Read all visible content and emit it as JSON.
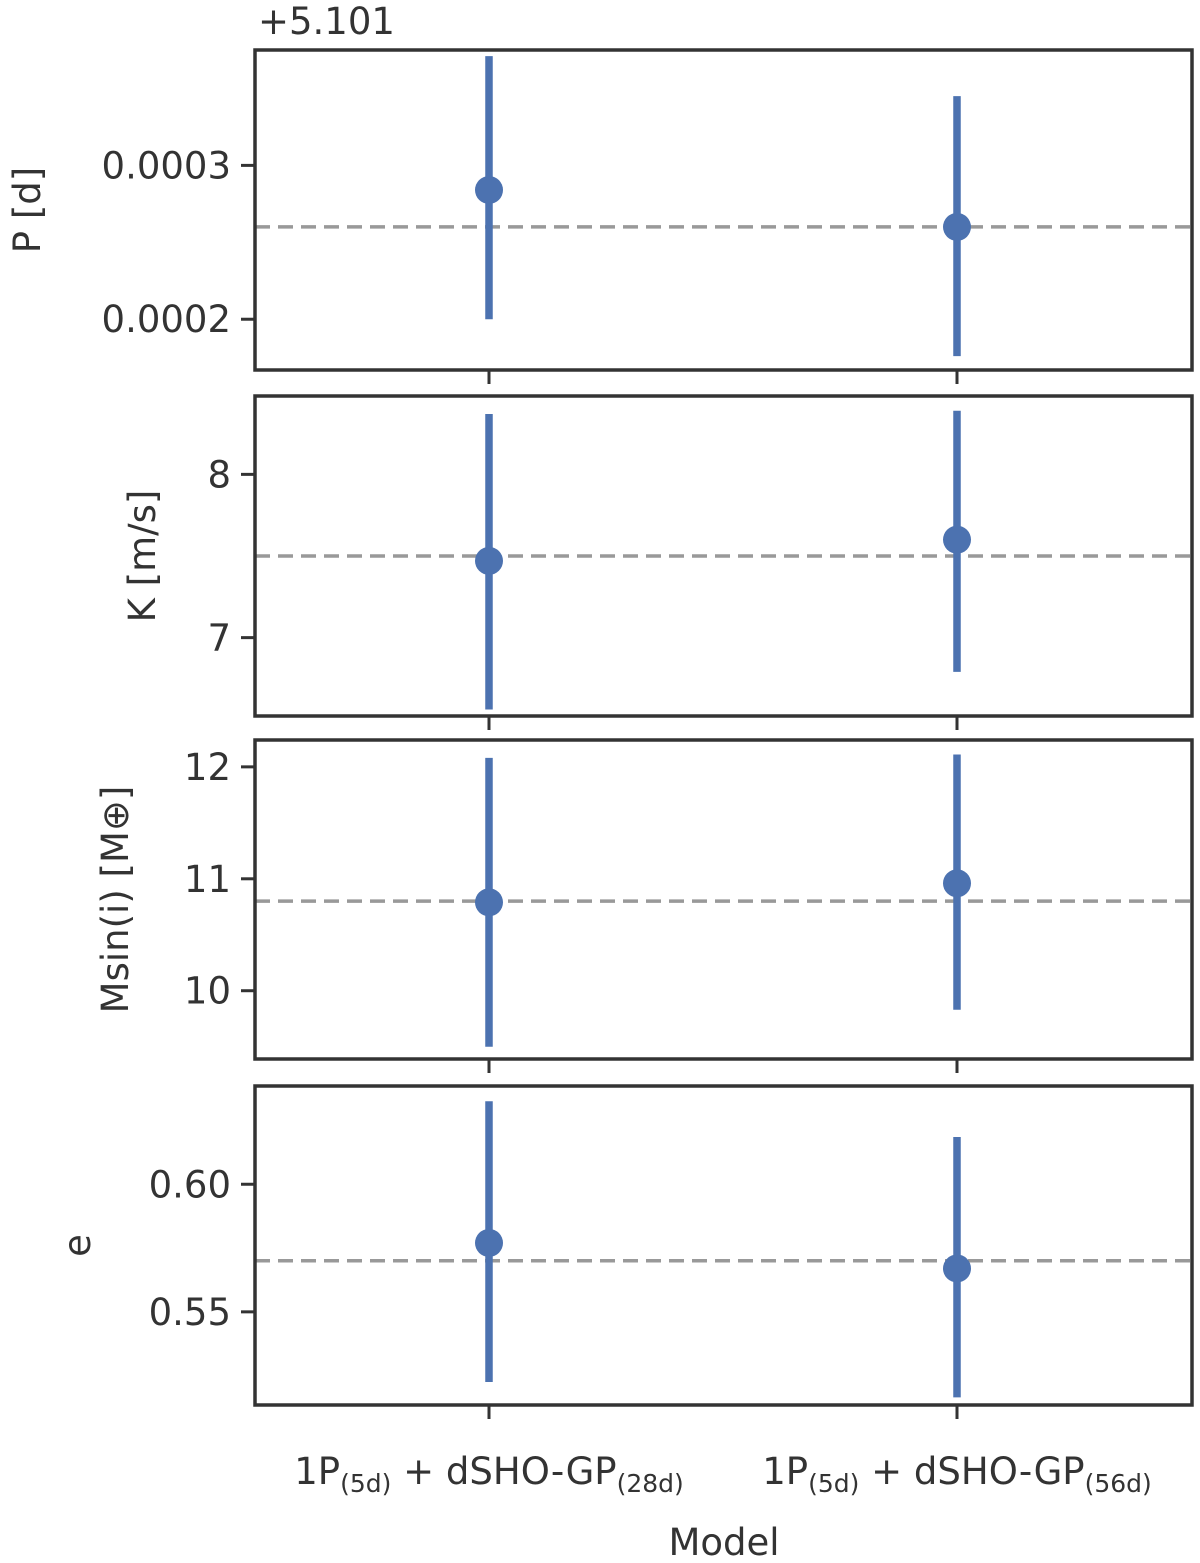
{
  "chart_data": {
    "type": "errorbar",
    "xlabel": "Model",
    "categories": [
      {
        "main": "1P",
        "sub1": "(5d)",
        "mid": " + dSHO-GP",
        "sub2": "(28d)"
      },
      {
        "main": "1P",
        "sub1": "(5d)",
        "mid": " + dSHO-GP",
        "sub2": "(56d)"
      }
    ],
    "panels": [
      {
        "ylabel": "P [d]",
        "offset_text": "+5.101",
        "ylim": [
          0.000167,
          0.000375
        ],
        "yticks": [
          0.0002,
          0.0003
        ],
        "ytick_labels": [
          "0.0002",
          "0.0003"
        ],
        "reference_line": 0.00026,
        "points": [
          {
            "y": 0.000284,
            "lower": 0.0002,
            "upper": 0.000371
          },
          {
            "y": 0.00026,
            "lower": 0.000176,
            "upper": 0.000345
          }
        ]
      },
      {
        "ylabel": "K [m/s]",
        "ylim": [
          6.52,
          8.48
        ],
        "yticks": [
          7,
          8
        ],
        "ytick_labels": [
          "7",
          "8"
        ],
        "reference_line": 7.5,
        "points": [
          {
            "y": 7.47,
            "lower": 6.56,
            "upper": 8.37
          },
          {
            "y": 7.6,
            "lower": 6.79,
            "upper": 8.39
          }
        ]
      },
      {
        "ylabel": "Msin(i) [M⊕]",
        "ylim": [
          9.39,
          12.24
        ],
        "yticks": [
          10,
          11,
          12
        ],
        "ytick_labels": [
          "10",
          "11",
          "12"
        ],
        "reference_line": 10.8,
        "points": [
          {
            "y": 10.79,
            "lower": 9.5,
            "upper": 12.08
          },
          {
            "y": 10.96,
            "lower": 9.83,
            "upper": 12.11
          }
        ]
      },
      {
        "ylabel": "e",
        "ylim": [
          0.5135,
          0.6385
        ],
        "yticks": [
          0.55,
          0.6
        ],
        "ytick_labels": [
          "0.55",
          "0.60"
        ],
        "reference_line": 0.57,
        "points": [
          {
            "y": 0.577,
            "lower": 0.5225,
            "upper": 0.6325
          },
          {
            "y": 0.567,
            "lower": 0.5165,
            "upper": 0.6185
          }
        ]
      }
    ],
    "colors": {
      "points": "#4c72b0",
      "reference": "#999999",
      "axes": "#333333"
    },
    "grid": false,
    "legend": "none"
  }
}
